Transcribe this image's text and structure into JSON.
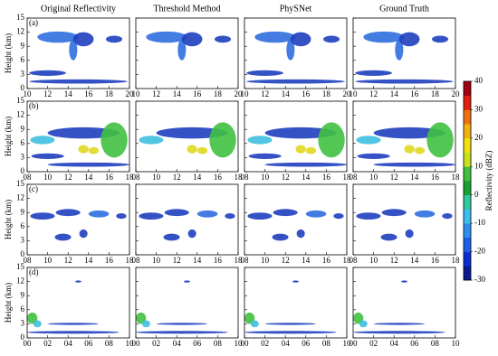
{
  "column_titles": [
    "Original Reflectivity",
    "Threshold Method",
    "PhySNet",
    "Ground Truth"
  ],
  "y_label": "Height (km)",
  "ylim": [
    0,
    15
  ],
  "yticks": [
    0,
    3,
    6,
    9,
    12,
    15
  ],
  "rows": [
    {
      "label": "(a)",
      "xlim": [
        10,
        20
      ],
      "xticks": [
        10,
        12,
        14,
        16,
        18,
        20
      ]
    },
    {
      "label": "(b)",
      "xlim": [
        8,
        18
      ],
      "xticks": [
        {
          "value": 8,
          "label": "08"
        },
        10,
        12,
        14,
        16,
        18
      ]
    },
    {
      "label": "(c)",
      "xlim": [
        8,
        18
      ],
      "xticks": [
        {
          "value": 8,
          "label": "08"
        },
        10,
        12,
        14,
        16,
        18
      ]
    },
    {
      "label": "(d)",
      "xlim": [
        0,
        10
      ],
      "xticks": [
        {
          "value": 0,
          "label": "00"
        },
        {
          "value": 2,
          "label": "02"
        },
        {
          "value": 4,
          "label": "04"
        },
        {
          "value": 6,
          "label": "06"
        },
        {
          "value": 8,
          "label": "08"
        },
        10
      ]
    }
  ],
  "colorbar": {
    "label": "Reflectivity (dBZ)",
    "lim": [
      -30,
      40
    ],
    "ticks": [
      -30,
      -20,
      -10,
      0,
      10,
      20,
      30,
      40
    ],
    "colors": [
      "#0a1a8c",
      "#0a2fd0",
      "#1f5fe8",
      "#2f8fef",
      "#3fbfef",
      "#30c8a0",
      "#1aa030",
      "#40c040",
      "#c8e020",
      "#f0e010",
      "#f0b010",
      "#f07010",
      "#e02010",
      "#a00010"
    ]
  }
}
